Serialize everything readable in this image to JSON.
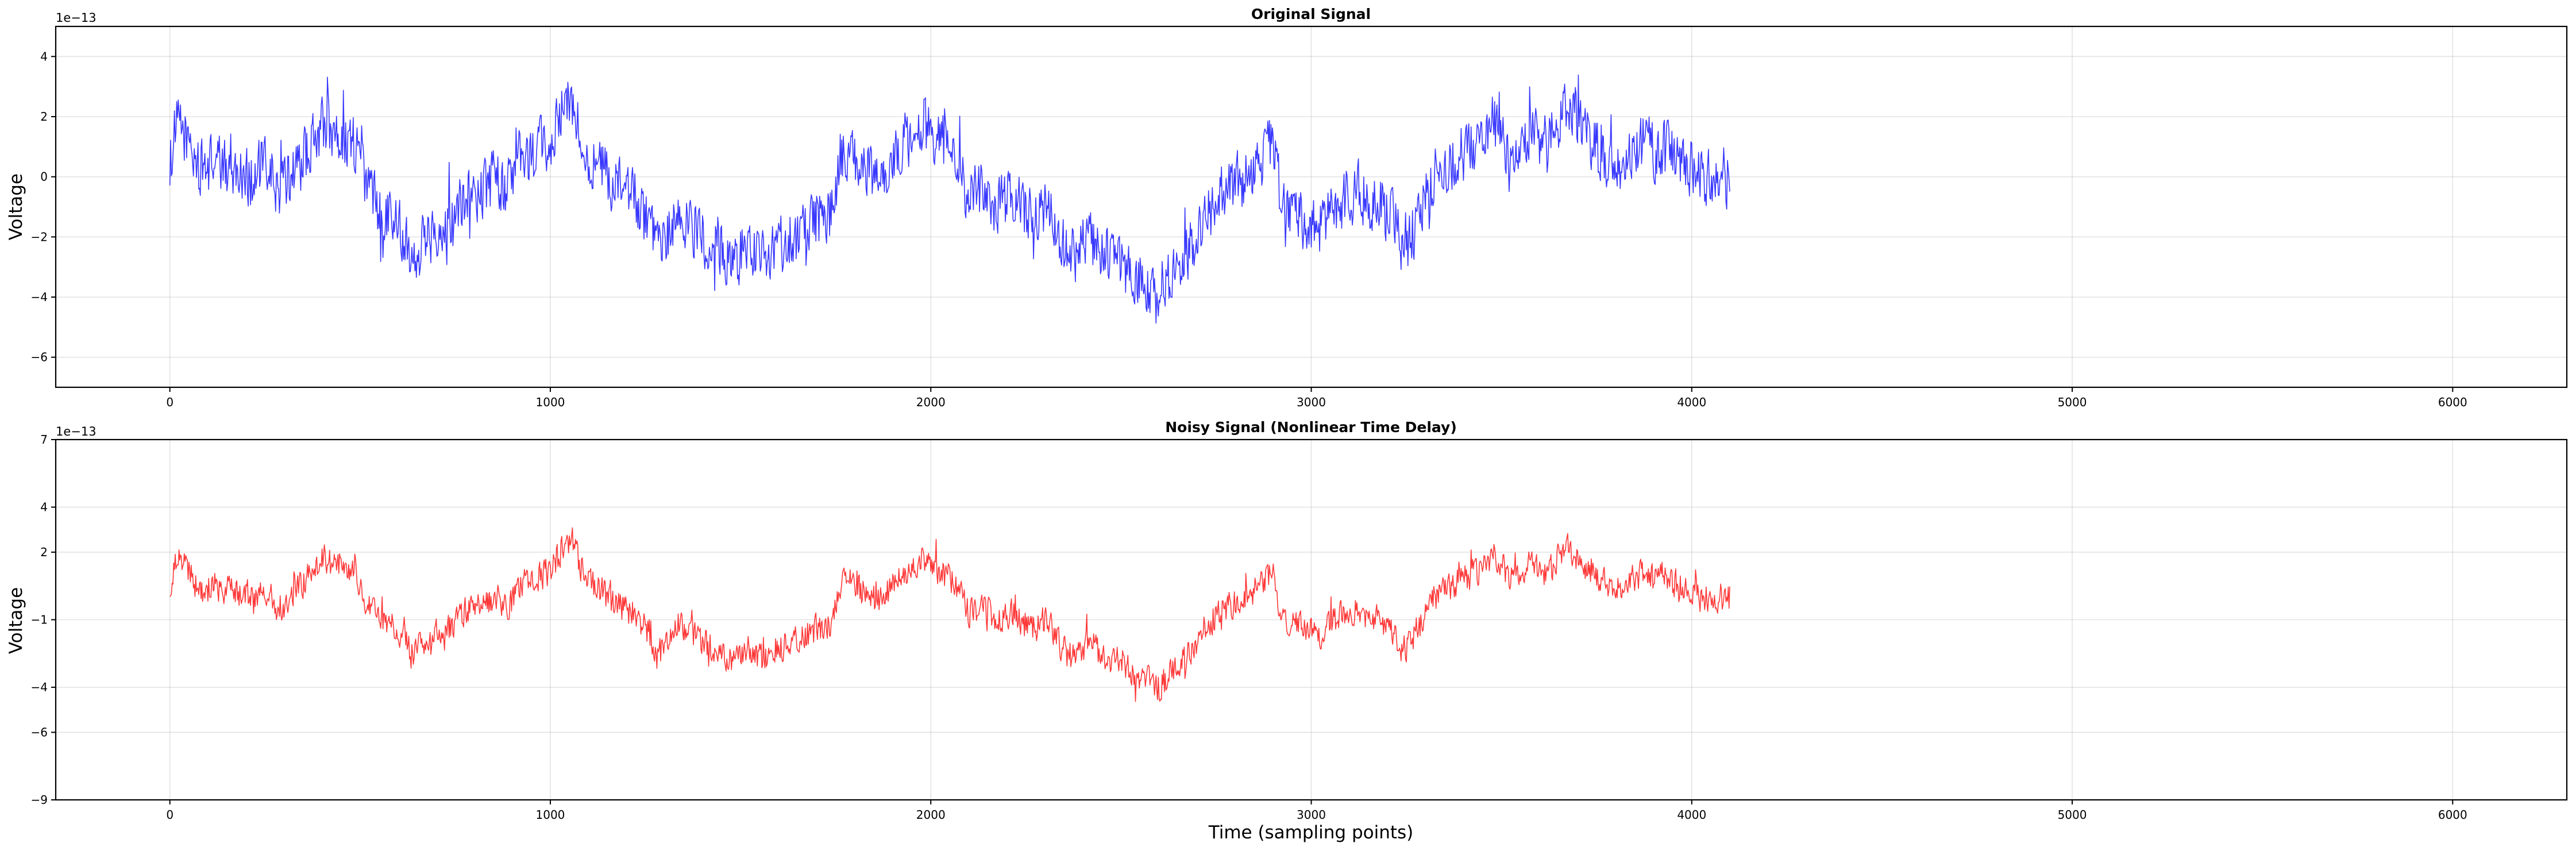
{
  "chart_data": [
    {
      "type": "line",
      "title": "Original Signal",
      "xlabel": "",
      "ylabel": "Voltage",
      "y_offset_label": "1e−13",
      "xlim": [
        -300,
        6300
      ],
      "ylim": [
        -7,
        5
      ],
      "x_ticks": [
        0,
        1000,
        2000,
        3000,
        4000,
        5000,
        6000
      ],
      "x_tick_labels": [
        "0",
        "1000",
        "2000",
        "3000",
        "4000",
        "5000",
        "6000"
      ],
      "y_ticks": [
        -6,
        -4,
        -2,
        0,
        2,
        4
      ],
      "y_tick_labels": [
        "−6",
        "−4",
        "−2",
        "0",
        "2",
        "4"
      ],
      "grid": true,
      "legend": "none",
      "color": "#0000ff",
      "series": [
        {
          "x_start": 0,
          "x_step": 20,
          "trend": [
            0.5,
            1.8,
            1.4,
            0.8,
            0.2,
            0.4,
            0.6,
            0.2,
            0.6,
            0.0,
            0.2,
            -0.2,
            0.4,
            0.2,
            -0.4,
            -0.4,
            0.2,
            0.4,
            0.8,
            1.2,
            1.8,
            1.5,
            1.6,
            1.2,
            1.2,
            0.6,
            -0.4,
            -0.8,
            -1.2,
            -1.0,
            -1.6,
            -2.0,
            -2.6,
            -2.2,
            -2.0,
            -1.6,
            -1.8,
            -1.2,
            -0.8,
            -0.6,
            -0.6,
            -0.4,
            -0.2,
            0.0,
            -0.4,
            -0.2,
            0.6,
            0.6,
            0.8,
            1.0,
            1.2,
            1.8,
            2.4,
            2.4,
            1.4,
            0.8,
            0.4,
            0.2,
            -0.2,
            -0.4,
            -0.6,
            -0.6,
            -1.2,
            -1.6,
            -2.6,
            -2.2,
            -1.6,
            -1.2,
            -1.6,
            -1.8,
            -2.0,
            -2.2,
            -2.2,
            -2.6,
            -2.8,
            -2.6,
            -2.2,
            -2.6,
            -2.8,
            -2.4,
            -2.2,
            -2.2,
            -2.0,
            -1.8,
            -1.6,
            -1.4,
            -1.4,
            -1.2,
            0.6,
            0.8,
            0.6,
            0.2,
            0.0,
            -0.2,
            0.0,
            0.8,
            1.0,
            1.2,
            1.4,
            1.8,
            1.4,
            1.2,
            1.0,
            0.6,
            0.2,
            -0.8,
            -0.6,
            -0.4,
            -0.8,
            -1.0,
            -0.8,
            -0.6,
            -1.2,
            -1.2,
            -1.4,
            -1.0,
            -1.4,
            -2.2,
            -2.6,
            -2.6,
            -2.2,
            -2.0,
            -2.4,
            -2.6,
            -2.8,
            -2.8,
            -3.2,
            -3.4,
            -3.6,
            -3.8,
            -4.0,
            -3.6,
            -3.2,
            -2.8,
            -2.4,
            -2.0,
            -1.4,
            -1.0,
            -0.6,
            -0.4,
            -0.2,
            0.0,
            0.2,
            0.4,
            0.8,
            1.2,
            -0.8,
            -1.0,
            -1.2,
            -1.4,
            -1.6,
            -1.8,
            -1.4,
            -1.0,
            -0.8,
            -0.6,
            -0.6,
            -0.8,
            -1.0,
            -1.0,
            -1.2,
            -1.6,
            -2.4,
            -2.0,
            -1.4,
            -0.8,
            0.0,
            0.2,
            0.4,
            0.6,
            0.8,
            1.0,
            1.2,
            1.6,
            1.8,
            1.4,
            1.0,
            0.8,
            1.2,
            1.6,
            1.2,
            1.0,
            1.6,
            2.0,
            2.2,
            1.8,
            1.4,
            1.2,
            0.8,
            0.6,
            0.4,
            0.6,
            0.8,
            1.0,
            1.2,
            0.8,
            1.0,
            0.8,
            0.6,
            0.4,
            0.2,
            0.0,
            0.0,
            0.0,
            0.0,
            0.0
          ]
        }
      ]
    },
    {
      "type": "line",
      "title": "Noisy Signal (Nonlinear Time Delay)",
      "xlabel": "Time (sampling points)",
      "ylabel": "Voltage",
      "y_offset_label": "1e−13",
      "xlim": [
        -300,
        6300
      ],
      "ylim": [
        -9,
        7
      ],
      "x_ticks": [
        0,
        1000,
        2000,
        3000,
        4000,
        5000,
        6000
      ],
      "x_tick_labels": [
        "0",
        "1000",
        "2000",
        "3000",
        "4000",
        "5000",
        "6000"
      ],
      "y_ticks": [
        -9,
        -6,
        -4,
        -1,
        2,
        4,
        7
      ],
      "y_tick_labels": [
        "−9",
        "−6",
        "−4",
        "−1",
        "2",
        "4",
        "7"
      ],
      "grid": true,
      "legend": "none",
      "color": "#ff0000",
      "series": [
        {
          "x_start": 0,
          "x_step": 20,
          "trend": [
            0.5,
            1.8,
            1.4,
            0.8,
            0.2,
            0.4,
            0.6,
            0.2,
            0.6,
            0.0,
            0.2,
            -0.2,
            0.4,
            0.2,
            -0.4,
            -0.4,
            0.2,
            0.4,
            0.8,
            1.2,
            1.8,
            1.5,
            1.6,
            1.2,
            1.2,
            0.6,
            -0.4,
            -0.8,
            -1.2,
            -1.0,
            -1.6,
            -2.0,
            -2.6,
            -2.2,
            -2.0,
            -1.6,
            -1.8,
            -1.2,
            -0.8,
            -0.6,
            -0.6,
            -0.4,
            -0.2,
            0.0,
            -0.4,
            -0.2,
            0.6,
            0.6,
            0.8,
            1.0,
            1.2,
            1.8,
            2.4,
            2.4,
            1.4,
            0.8,
            0.4,
            0.2,
            -0.2,
            -0.4,
            -0.6,
            -0.6,
            -1.2,
            -1.6,
            -2.6,
            -2.2,
            -1.6,
            -1.2,
            -1.6,
            -1.8,
            -2.0,
            -2.2,
            -2.2,
            -2.6,
            -2.8,
            -2.6,
            -2.2,
            -2.6,
            -2.8,
            -2.4,
            -2.2,
            -2.2,
            -2.0,
            -1.8,
            -1.6,
            -1.4,
            -1.4,
            -1.2,
            0.6,
            0.8,
            0.6,
            0.2,
            0.0,
            -0.2,
            0.0,
            0.8,
            1.0,
            1.2,
            1.4,
            1.8,
            1.4,
            1.2,
            1.0,
            0.6,
            0.2,
            -0.8,
            -0.6,
            -0.4,
            -0.8,
            -1.0,
            -0.8,
            -0.6,
            -1.2,
            -1.2,
            -1.4,
            -1.0,
            -1.4,
            -2.2,
            -2.6,
            -2.6,
            -2.2,
            -2.0,
            -2.4,
            -2.6,
            -2.8,
            -2.8,
            -3.2,
            -3.4,
            -3.6,
            -3.8,
            -4.0,
            -3.6,
            -3.2,
            -2.8,
            -2.4,
            -2.0,
            -1.4,
            -1.0,
            -0.6,
            -0.4,
            -0.2,
            0.0,
            0.2,
            0.4,
            0.8,
            1.2,
            -0.8,
            -1.0,
            -1.2,
            -1.4,
            -1.6,
            -1.8,
            -1.4,
            -1.0,
            -0.8,
            -0.6,
            -0.6,
            -0.8,
            -1.0,
            -1.0,
            -1.2,
            -1.6,
            -2.4,
            -2.0,
            -1.4,
            -0.8,
            0.0,
            0.2,
            0.4,
            0.6,
            0.8,
            1.0,
            1.2,
            1.6,
            1.8,
            1.4,
            1.0,
            0.8,
            1.2,
            1.6,
            1.2,
            1.0,
            1.6,
            2.0,
            2.2,
            1.8,
            1.4,
            1.2,
            0.8,
            0.6,
            0.4,
            0.6,
            0.8,
            1.0,
            1.2,
            0.8,
            1.0,
            0.8,
            0.6,
            0.4,
            0.2,
            0.0,
            0.0,
            0.0,
            0.0,
            0.0
          ]
        }
      ]
    }
  ]
}
